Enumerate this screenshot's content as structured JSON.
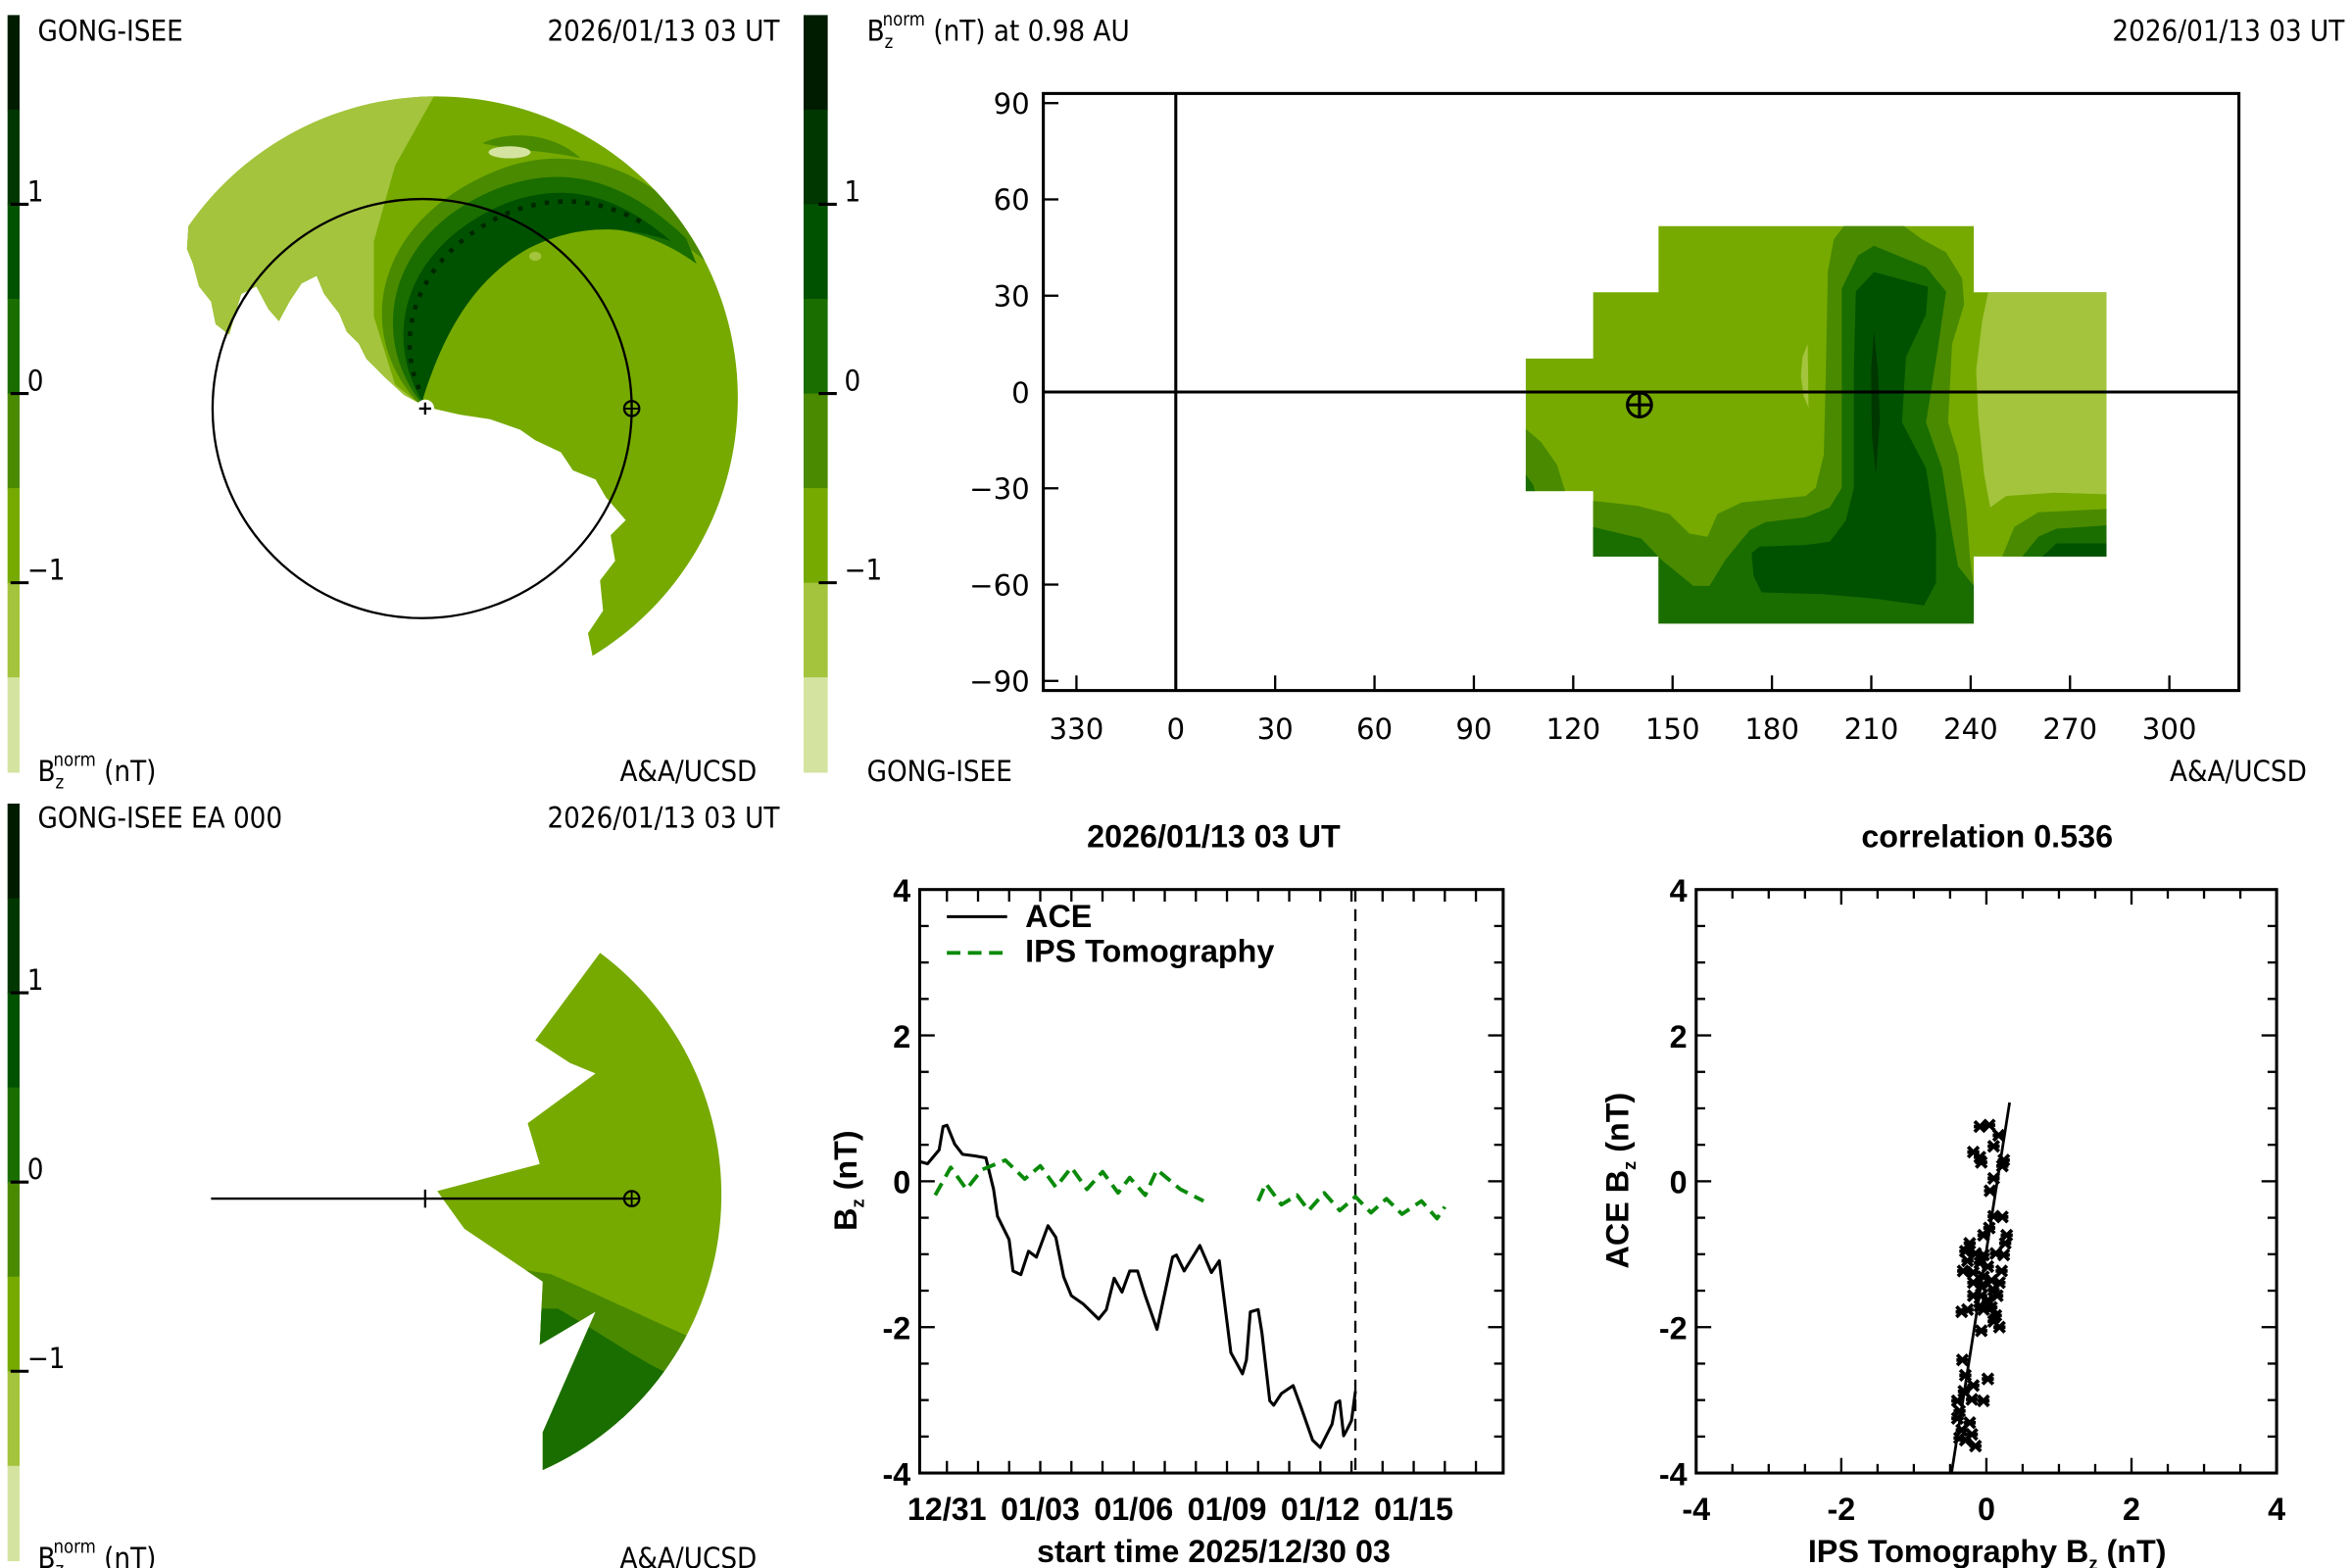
{
  "panels": {
    "top_left": {
      "source": "GONG-ISEE",
      "time": "2026/01/13 03 UT",
      "units": {
        "base": "B",
        "sub": "z",
        "sup": "norm",
        "rest": " (nT)"
      },
      "credit": "A&A/UCSD"
    },
    "top_right": {
      "title": {
        "base": "B",
        "sub": "z",
        "sup": "norm",
        "rest": " (nT) at 0.98 AU"
      },
      "time": "2026/01/13 03 UT",
      "source": "GONG-ISEE",
      "credit": "A&A/UCSD"
    },
    "bottom_left": {
      "source": "GONG-ISEE EA 000",
      "time": "2026/01/13 03 UT",
      "units": {
        "base": "B",
        "sub": "z",
        "sup": "norm",
        "rest": " (nT)"
      },
      "credit": "A&A/UCSD"
    }
  },
  "colorbar": {
    "range": [
      -2,
      2
    ],
    "colors": [
      "#001c00",
      "#003700",
      "#005200",
      "#1a6e00",
      "#4a8a00",
      "#76aa00",
      "#a3c43c",
      "#d4e4a0"
    ],
    "ticks": [
      {
        "value": 1,
        "label": "1"
      },
      {
        "value": 0,
        "label": "0"
      },
      {
        "value": -1,
        "label": "−1"
      }
    ]
  },
  "chart_data": [
    {
      "type": "line",
      "title": "2026/01/13 03 UT",
      "xlabel": "start time 2025/12/30 03",
      "ylabel": {
        "base": "B",
        "sub": "z",
        "rest": " (nT)"
      },
      "xlim": [
        "2025-12-30 03",
        "2026-01-17 21"
      ],
      "ylim": [
        -4,
        4
      ],
      "y_ticks": [
        {
          "value": 4,
          "label": "4"
        },
        {
          "value": 2,
          "label": "2"
        },
        {
          "value": 0,
          "label": "0"
        },
        {
          "value": -2,
          "label": "-2"
        },
        {
          "value": -4,
          "label": "-4"
        }
      ],
      "x_ticks": [
        {
          "time": "2025-12-31 00",
          "label": "12/31"
        },
        {
          "time": "2026-01-03 00",
          "label": "01/03"
        },
        {
          "time": "2026-01-06 00",
          "label": "01/06"
        },
        {
          "time": "2026-01-09 00",
          "label": "01/09"
        },
        {
          "time": "2026-01-12 00",
          "label": "01/12"
        },
        {
          "time": "2026-01-15 00",
          "label": "01/15"
        }
      ],
      "marker_time": "2026-01-13 03",
      "legend_placement": "top-left",
      "series": [
        {
          "name": "ACE",
          "color": "#000000",
          "style": "solid",
          "segments": [
            [
              [
                "2025-12-30 03",
                0.27
              ],
              [
                "2025-12-30 09",
                0.24
              ],
              [
                "2025-12-30 18",
                0.43
              ],
              [
                "2025-12-30 21",
                0.75
              ],
              [
                "2025-12-31 00",
                0.77
              ],
              [
                "2025-12-31 06",
                0.51
              ],
              [
                "2025-12-31 12",
                0.37
              ],
              [
                "2025-12-31 21",
                0.35
              ],
              [
                "2026-01-01 03",
                0.33
              ],
              [
                "2026-01-01 06",
                0.32
              ],
              [
                "2026-01-01 12",
                -0.11
              ],
              [
                "2026-01-01 15",
                -0.48
              ],
              [
                "2026-01-02 00",
                -0.8
              ],
              [
                "2026-01-02 03",
                -1.23
              ],
              [
                "2026-01-02 09",
                -1.28
              ],
              [
                "2026-01-02 15",
                -0.96
              ],
              [
                "2026-01-02 21",
                -1.04
              ],
              [
                "2026-01-03 06",
                -0.61
              ],
              [
                "2026-01-03 12",
                -0.77
              ],
              [
                "2026-01-03 18",
                -1.31
              ],
              [
                "2026-01-04 00",
                -1.57
              ],
              [
                "2026-01-04 09",
                -1.68
              ],
              [
                "2026-01-04 21",
                -1.89
              ],
              [
                "2026-01-05 03",
                -1.76
              ],
              [
                "2026-01-05 09",
                -1.33
              ],
              [
                "2026-01-05 15",
                -1.52
              ],
              [
                "2026-01-05 21",
                -1.23
              ],
              [
                "2026-01-06 03",
                -1.23
              ],
              [
                "2026-01-06 09",
                -1.57
              ],
              [
                "2026-01-06 18",
                -2.03
              ],
              [
                "2026-01-07 06",
                -1.04
              ],
              [
                "2026-01-07 09",
                -1.01
              ],
              [
                "2026-01-07 15",
                -1.23
              ],
              [
                "2026-01-08 03",
                -0.88
              ],
              [
                "2026-01-08 12",
                -1.25
              ],
              [
                "2026-01-08 18",
                -1.09
              ],
              [
                "2026-01-09 03",
                -2.35
              ],
              [
                "2026-01-09 12",
                -2.64
              ],
              [
                "2026-01-09 15",
                -2.45
              ],
              [
                "2026-01-09 18",
                -1.79
              ],
              [
                "2026-01-10 00",
                -1.76
              ],
              [
                "2026-01-10 03",
                -2.08
              ],
              [
                "2026-01-10 09",
                -3.01
              ],
              [
                "2026-01-10 12",
                -3.07
              ],
              [
                "2026-01-10 18",
                -2.91
              ],
              [
                "2026-01-11 03",
                -2.8
              ],
              [
                "2026-01-11 09",
                -3.09
              ],
              [
                "2026-01-11 18",
                -3.55
              ],
              [
                "2026-01-12 00",
                -3.65
              ],
              [
                "2026-01-12 09",
                -3.33
              ],
              [
                "2026-01-12 12",
                -3.04
              ],
              [
                "2026-01-12 15",
                -3.01
              ],
              [
                "2026-01-12 18",
                -3.49
              ],
              [
                "2026-01-12 21",
                -3.39
              ],
              [
                "2026-01-13 00",
                -3.28
              ],
              [
                "2026-01-13 03",
                -2.88
              ]
            ]
          ]
        },
        {
          "name": "IPS Tomography",
          "color": "#0a8a0a",
          "style": "dashed",
          "segments": [
            [
              [
                "2025-12-30 15",
                -0.19
              ],
              [
                "2025-12-31 03",
                0.19
              ],
              [
                "2025-12-31 15",
                -0.11
              ],
              [
                "2026-01-01 03",
                0.16
              ],
              [
                "2026-01-01 21",
                0.29
              ],
              [
                "2026-01-02 12",
                0.03
              ],
              [
                "2026-01-03 00",
                0.21
              ],
              [
                "2026-01-03 12",
                -0.08
              ],
              [
                "2026-01-04 00",
                0.19
              ],
              [
                "2026-01-04 12",
                -0.11
              ],
              [
                "2026-01-05 00",
                0.13
              ],
              [
                "2026-01-05 12",
                -0.16
              ],
              [
                "2026-01-05 21",
                0.05
              ],
              [
                "2026-01-06 09",
                -0.19
              ],
              [
                "2026-01-06 18",
                0.16
              ],
              [
                "2026-01-07 12",
                -0.11
              ],
              [
                "2026-01-08 06",
                -0.27
              ]
            ],
            [
              [
                "2026-01-10 00",
                -0.27
              ],
              [
                "2026-01-10 06",
                -0.03
              ],
              [
                "2026-01-10 18",
                -0.32
              ],
              [
                "2026-01-11 06",
                -0.19
              ],
              [
                "2026-01-11 15",
                -0.4
              ],
              [
                "2026-01-12 03",
                -0.16
              ],
              [
                "2026-01-12 15",
                -0.4
              ],
              [
                "2026-01-13 03",
                -0.21
              ],
              [
                "2026-01-13 15",
                -0.43
              ],
              [
                "2026-01-14 03",
                -0.24
              ],
              [
                "2026-01-14 15",
                -0.45
              ],
              [
                "2026-01-15 06",
                -0.27
              ],
              [
                "2026-01-15 18",
                -0.51
              ],
              [
                "2026-01-16 00",
                -0.35
              ]
            ]
          ]
        }
      ]
    },
    {
      "type": "scatter",
      "title": "correlation 0.536",
      "xlabel": {
        "base": "IPS Tomography B",
        "sub": "z",
        "rest": " (nT)"
      },
      "ylabel": {
        "base": "ACE B",
        "sub": "z",
        "rest": " (nT)"
      },
      "xlim": [
        -4,
        4
      ],
      "ylim": [
        -4,
        4
      ],
      "ticks": [
        {
          "value": -4,
          "label": "-4"
        },
        {
          "value": -2,
          "label": "-2"
        },
        {
          "value": 0,
          "label": "0"
        },
        {
          "value": 2,
          "label": "2"
        },
        {
          "value": 4,
          "label": "4"
        }
      ],
      "fit_line": [
        [
          -0.48,
          -4.0
        ],
        [
          0.32,
          1.08
        ]
      ],
      "points": [
        [
          -0.09,
          0.75
        ],
        [
          0.04,
          0.77
        ],
        [
          0.17,
          0.63
        ],
        [
          0.1,
          0.48
        ],
        [
          -0.18,
          0.4
        ],
        [
          -0.09,
          0.33
        ],
        [
          -0.07,
          0.26
        ],
        [
          0.24,
          0.29
        ],
        [
          0.22,
          0.21
        ],
        [
          0.1,
          0.04
        ],
        [
          0.05,
          -0.13
        ],
        [
          0.1,
          -0.48
        ],
        [
          0.22,
          -0.49
        ],
        [
          -0.04,
          -0.74
        ],
        [
          0.04,
          -0.64
        ],
        [
          0.28,
          -0.74
        ],
        [
          0.26,
          -0.85
        ],
        [
          -0.23,
          -0.85
        ],
        [
          -0.29,
          -0.96
        ],
        [
          -0.15,
          -0.99
        ],
        [
          -0.04,
          -1.01
        ],
        [
          0.13,
          -0.99
        ],
        [
          0.24,
          -1.01
        ],
        [
          -0.26,
          -1.09
        ],
        [
          -0.09,
          -1.12
        ],
        [
          0.02,
          -1.17
        ],
        [
          -0.32,
          -1.23
        ],
        [
          -0.18,
          -1.25
        ],
        [
          0.21,
          -1.23
        ],
        [
          -0.04,
          -1.31
        ],
        [
          0.07,
          -1.36
        ],
        [
          -0.18,
          -1.39
        ],
        [
          0.18,
          -1.39
        ],
        [
          -0.07,
          -1.44
        ],
        [
          0.1,
          -1.49
        ],
        [
          -0.18,
          -1.57
        ],
        [
          -0.07,
          -1.57
        ],
        [
          0.15,
          -1.57
        ],
        [
          0.02,
          -1.63
        ],
        [
          -0.09,
          -1.71
        ],
        [
          0.07,
          -1.73
        ],
        [
          -0.34,
          -1.79
        ],
        [
          -0.26,
          -1.76
        ],
        [
          -0.04,
          -1.76
        ],
        [
          0.13,
          -1.84
        ],
        [
          0.1,
          -1.92
        ],
        [
          0.18,
          -2.0
        ],
        [
          -0.07,
          -2.05
        ],
        [
          -0.33,
          -2.45
        ],
        [
          -0.29,
          -2.66
        ],
        [
          0.02,
          -2.71
        ],
        [
          -0.18,
          -2.8
        ],
        [
          -0.31,
          -2.88
        ],
        [
          -0.4,
          -3.01
        ],
        [
          -0.2,
          -2.99
        ],
        [
          -0.04,
          -3.01
        ],
        [
          -0.37,
          -3.15
        ],
        [
          -0.4,
          -3.25
        ],
        [
          -0.23,
          -3.31
        ],
        [
          -0.34,
          -3.41
        ],
        [
          -0.2,
          -3.47
        ],
        [
          -0.29,
          -3.55
        ],
        [
          -0.15,
          -3.63
        ],
        [
          -0.37,
          -3.52
        ]
      ]
    },
    {
      "type": "heatmap",
      "title": {
        "base": "B",
        "sub": "z",
        "sup": "norm",
        "rest": " (nT) at 0.98 AU"
      },
      "xlim": [
        -40,
        321
      ],
      "ylim": [
        -93,
        93
      ],
      "x_ticks": [
        {
          "value": 330,
          "label": "330"
        },
        {
          "value": 0,
          "label": "0"
        },
        {
          "value": 30,
          "label": "30"
        },
        {
          "value": 60,
          "label": "60"
        },
        {
          "value": 90,
          "label": "90"
        },
        {
          "value": 120,
          "label": "120"
        },
        {
          "value": 150,
          "label": "150"
        },
        {
          "value": 180,
          "label": "180"
        },
        {
          "value": 210,
          "label": "210"
        },
        {
          "value": 240,
          "label": "240"
        },
        {
          "value": 270,
          "label": "270"
        },
        {
          "value": 300,
          "label": "300"
        }
      ],
      "y_ticks": [
        {
          "value": 90,
          "label": "90"
        },
        {
          "value": 60,
          "label": "60"
        },
        {
          "value": 30,
          "label": "30"
        },
        {
          "value": 0,
          "label": "0"
        },
        {
          "value": -30,
          "label": "−30"
        },
        {
          "value": -60,
          "label": "−60"
        },
        {
          "value": -90,
          "label": "−90"
        }
      ],
      "earth_position": [
        140,
        -4
      ]
    }
  ]
}
